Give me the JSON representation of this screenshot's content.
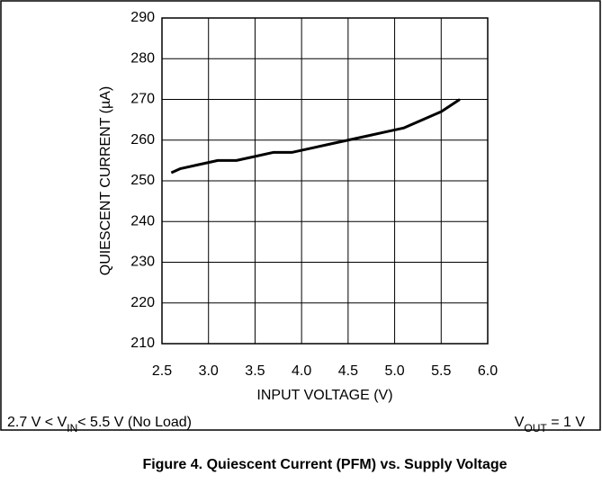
{
  "chart_data": {
    "type": "line",
    "xlabel": "INPUT VOLTAGE (V)",
    "ylabel": "QUIESCENT CURRENT (µA)",
    "caption": "Figure 4. Quiescent Current (PFM) vs. Supply Voltage",
    "annotations": {
      "left": [
        "2.7 V < V",
        "IN",
        "< 5.5 V (No Load)"
      ],
      "right": [
        "V",
        "OUT",
        " = 1 V"
      ]
    },
    "xlim": [
      2.5,
      6.0
    ],
    "xticks": [
      2.5,
      {
        "value": 3,
        "label": "3.0"
      },
      3.5,
      {
        "value": 4,
        "label": "4.0"
      },
      4.5,
      {
        "value": 5,
        "label": "5.0"
      },
      5.5,
      {
        "value": 6,
        "label": "6.0"
      }
    ],
    "ylim": [
      210,
      290
    ],
    "yticks": [
      210,
      220,
      230,
      240,
      250,
      260,
      270,
      280,
      290
    ],
    "grid": true,
    "series": [
      {
        "color": "#000000",
        "x": [
          2.6,
          2.7,
          2.9,
          3.1,
          3.3,
          3.5,
          3.7,
          3.9,
          4.1,
          4.3,
          4.5,
          4.7,
          4.9,
          5.1,
          5.3,
          5.5,
          5.7
        ],
        "values": [
          252,
          253,
          254,
          255,
          255,
          256,
          257,
          257,
          258,
          259,
          260,
          261,
          262,
          263,
          265,
          267,
          270
        ]
      }
    ]
  }
}
